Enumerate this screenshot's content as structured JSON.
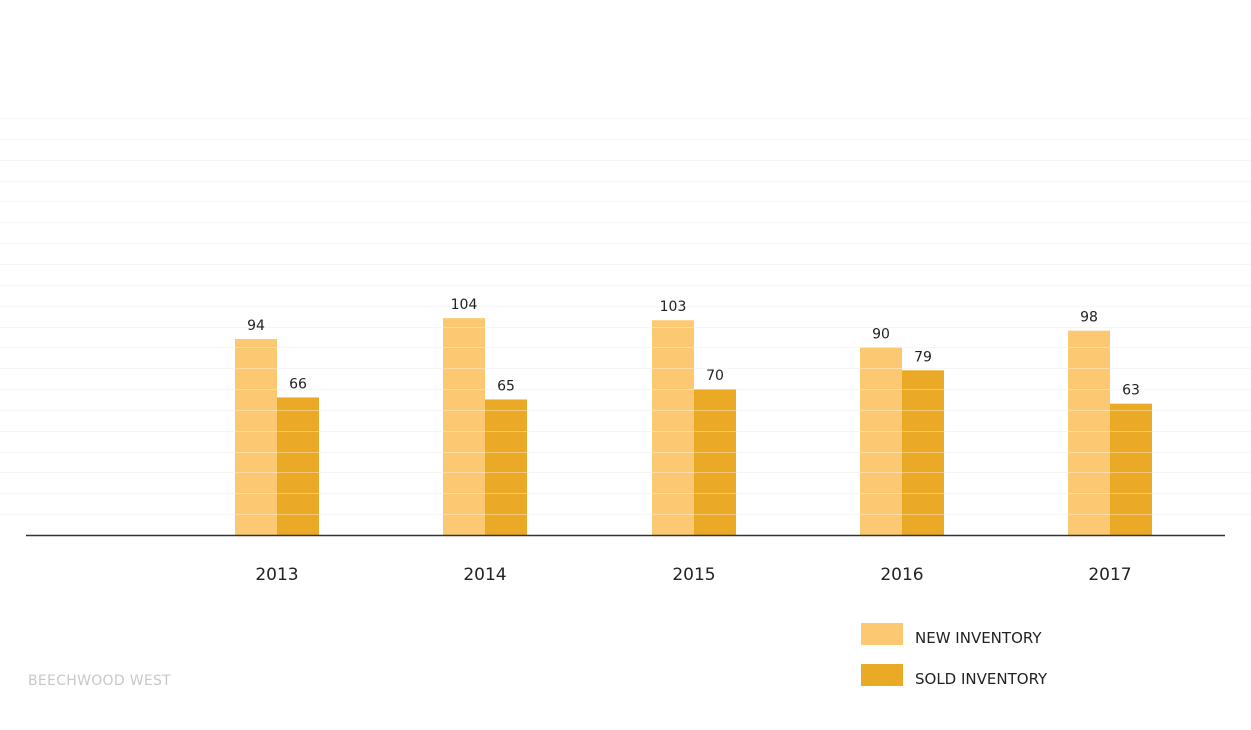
{
  "chart_data": {
    "type": "bar",
    "categories": [
      "2013",
      "2014",
      "2015",
      "2016",
      "2017"
    ],
    "series": [
      {
        "name": "NEW INVENTORY",
        "values": [
          94,
          104,
          103,
          90,
          98
        ],
        "color": "#fdc872"
      },
      {
        "name": "SOLD INVENTORY",
        "values": [
          66,
          65,
          70,
          79,
          63
        ],
        "color": "#ebaa25"
      }
    ],
    "ylim": [
      0,
      200
    ],
    "grid": true,
    "legend_position": "bottom-right",
    "data_labels": true
  },
  "footer": {
    "brand": "BEECHWOOD WEST"
  },
  "colors": {
    "gridline": "#f1f1f1",
    "baseline": "#333333",
    "text": "#222222",
    "footer": "#c8c8c8"
  }
}
